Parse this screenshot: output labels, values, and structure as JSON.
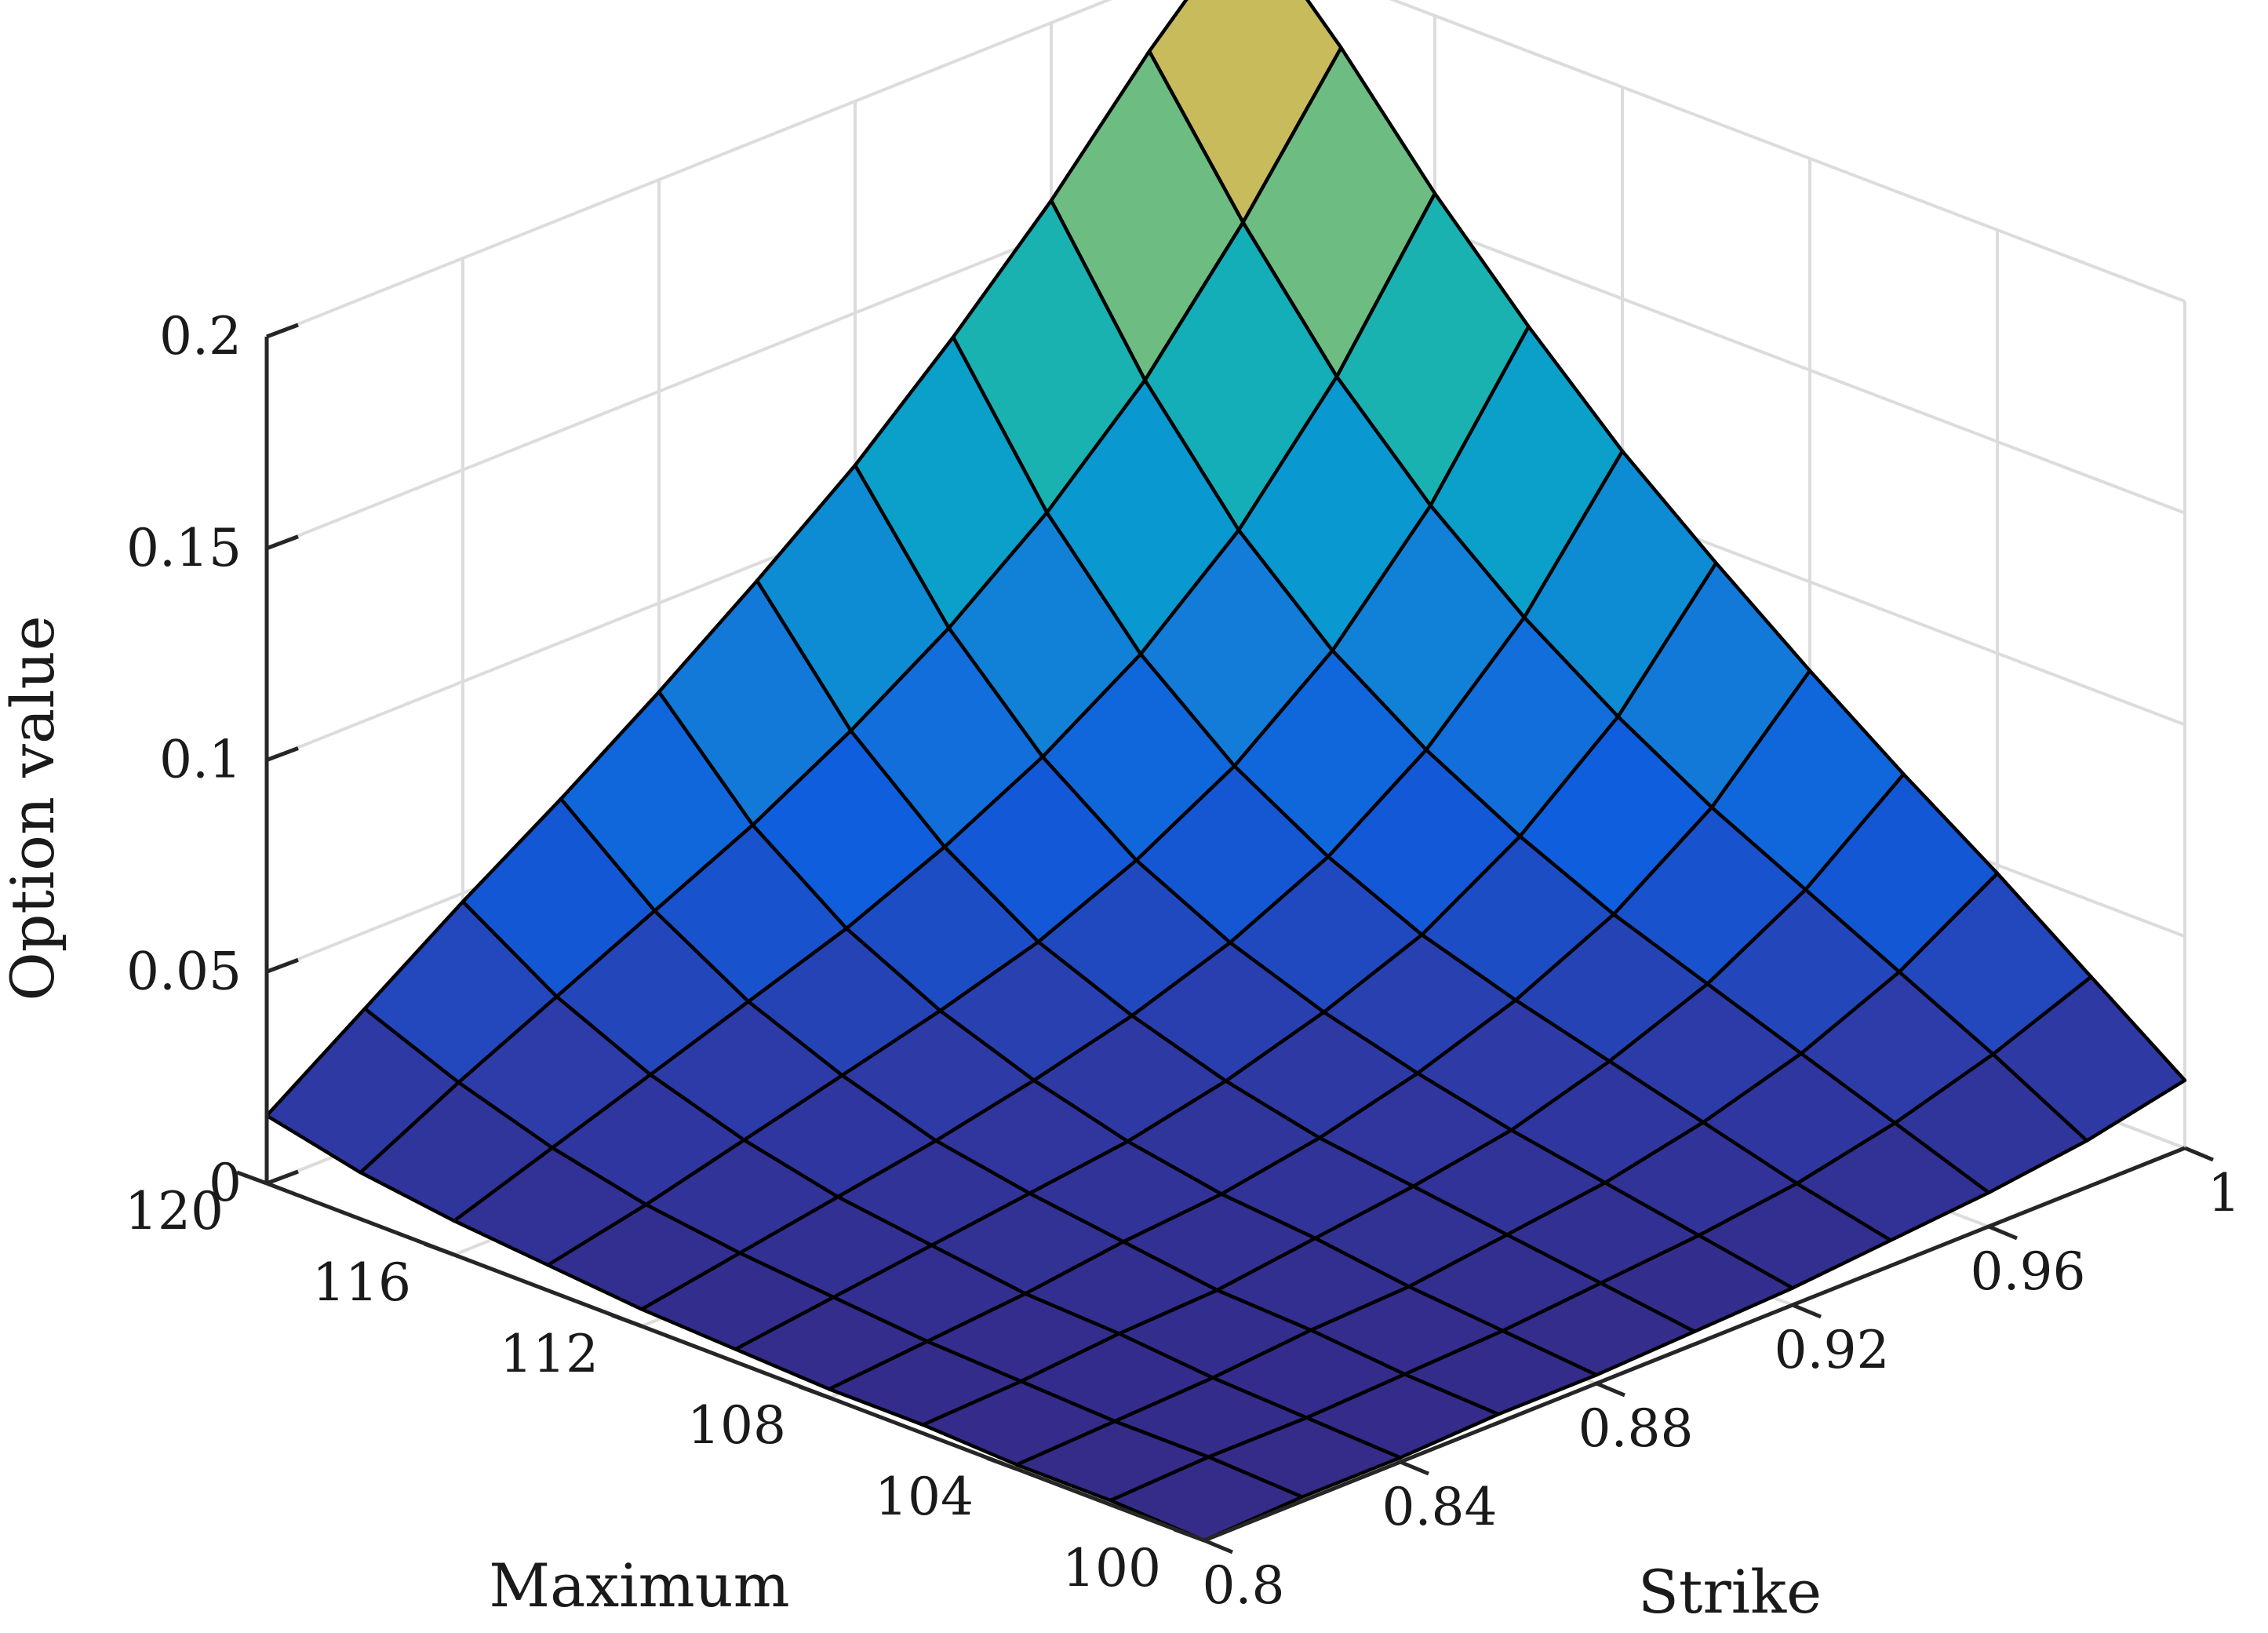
{
  "chart_data": {
    "type": "surface",
    "title": "",
    "xlabel": "Strike",
    "ylabel": "Maximum",
    "zlabel": "Option value",
    "x": [
      0.8,
      0.82,
      0.84,
      0.86,
      0.88,
      0.9,
      0.92,
      0.94,
      0.96,
      0.98,
      1.0
    ],
    "y": [
      100,
      102,
      104,
      106,
      108,
      110,
      112,
      114,
      116,
      118,
      120
    ],
    "x_ticks": [
      0.8,
      0.84,
      0.88,
      0.92,
      0.96,
      1
    ],
    "x_tick_labels": [
      "0.8",
      "0.84",
      "0.88",
      "0.92",
      "0.96",
      "1"
    ],
    "y_ticks": [
      100,
      104,
      108,
      112,
      116,
      120
    ],
    "y_tick_labels": [
      "100",
      "104",
      "108",
      "112",
      "116",
      "120"
    ],
    "z_ticks": [
      0,
      0.05,
      0.1,
      0.15,
      0.2
    ],
    "z_tick_labels": [
      "0",
      "0.05",
      "0.1",
      "0.15",
      "0.2"
    ],
    "xlim": [
      0.8,
      1.0
    ],
    "ylim": [
      100,
      120
    ],
    "zlim": [
      0,
      0.2
    ],
    "grid": true,
    "colormap": "parula",
    "edge_color": "#000000",
    "grid_color": "#dcdcdc",
    "z": [
      [
        0.0,
        0.001,
        0.001,
        0.002,
        0.002,
        0.003,
        0.004,
        0.006,
        0.008,
        0.011,
        0.016
      ],
      [
        0.001,
        0.002,
        0.002,
        0.003,
        0.004,
        0.006,
        0.008,
        0.011,
        0.016,
        0.023,
        0.032
      ],
      [
        0.001,
        0.002,
        0.003,
        0.005,
        0.006,
        0.009,
        0.012,
        0.017,
        0.024,
        0.034,
        0.048
      ],
      [
        0.002,
        0.003,
        0.005,
        0.006,
        0.009,
        0.012,
        0.016,
        0.023,
        0.032,
        0.045,
        0.063
      ],
      [
        0.002,
        0.004,
        0.006,
        0.009,
        0.011,
        0.015,
        0.021,
        0.029,
        0.04,
        0.056,
        0.079
      ],
      [
        0.003,
        0.006,
        0.009,
        0.012,
        0.015,
        0.02,
        0.027,
        0.036,
        0.05,
        0.069,
        0.096
      ],
      [
        0.004,
        0.008,
        0.012,
        0.016,
        0.021,
        0.027,
        0.035,
        0.046,
        0.062,
        0.084,
        0.114
      ],
      [
        0.006,
        0.011,
        0.017,
        0.023,
        0.029,
        0.036,
        0.046,
        0.059,
        0.077,
        0.102,
        0.135
      ],
      [
        0.008,
        0.016,
        0.024,
        0.032,
        0.04,
        0.05,
        0.062,
        0.077,
        0.097,
        0.124,
        0.158
      ],
      [
        0.011,
        0.023,
        0.034,
        0.045,
        0.056,
        0.069,
        0.084,
        0.102,
        0.124,
        0.152,
        0.184
      ],
      [
        0.016,
        0.032,
        0.048,
        0.063,
        0.079,
        0.096,
        0.114,
        0.135,
        0.158,
        0.184,
        0.207
      ]
    ]
  }
}
